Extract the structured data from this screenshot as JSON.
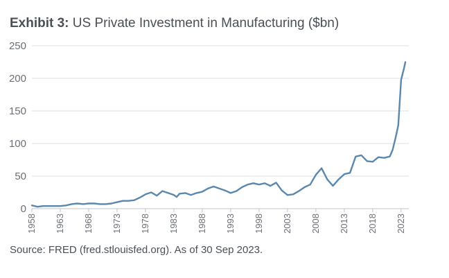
{
  "title": {
    "prefix": "Exhibit 3:",
    "main": "US Private Investment in Manufacturing ($bn)"
  },
  "source": "Source: FRED (fred.stlouisfed.org). As of 30 Sep 2023.",
  "colors": {
    "line": "#5b87ad",
    "grid": "#dcdfe3",
    "text": "#4a4f57"
  },
  "chart_data": {
    "type": "line",
    "title": "US Private Investment in Manufacturing ($bn)",
    "xlabel": "",
    "ylabel": "",
    "ylim": [
      0,
      250
    ],
    "xlim": [
      1958,
      2023.75
    ],
    "y_ticks": [
      "0",
      "50",
      "100",
      "150",
      "200",
      "250"
    ],
    "x_ticks": [
      "1958",
      "1963",
      "1968",
      "1973",
      "1978",
      "1983",
      "1988",
      "1993",
      "1998",
      "2003",
      "2008",
      "2013",
      "2018",
      "2023"
    ],
    "grid": "horizontal",
    "series": [
      {
        "name": "US Private Investment in Manufacturing",
        "x": [
          1958,
          1959,
          1960,
          1961,
          1962,
          1963,
          1964,
          1965,
          1966,
          1967,
          1968,
          1969,
          1970,
          1971,
          1972,
          1973,
          1974,
          1975,
          1976,
          1977,
          1978,
          1979,
          1980,
          1981,
          1982,
          1983,
          1983.5,
          1984,
          1985,
          1986,
          1987,
          1988,
          1989,
          1990,
          1991,
          1992,
          1993,
          1994,
          1995,
          1996,
          1997,
          1998,
          1999,
          2000,
          2001,
          2002,
          2003,
          2004,
          2005,
          2006,
          2007,
          2008,
          2009,
          2010,
          2011,
          2012,
          2013,
          2014,
          2015,
          2016,
          2017,
          2018,
          2019,
          2020,
          2021,
          2021.5,
          2022,
          2022.5,
          2023,
          2023.5,
          2023.75
        ],
        "values": [
          5,
          3,
          4,
          4,
          4,
          4,
          5,
          7,
          8,
          7,
          8,
          8,
          7,
          7,
          8,
          10,
          12,
          12,
          13,
          17,
          22,
          25,
          20,
          27,
          24,
          21,
          18,
          23,
          24,
          21,
          24,
          26,
          31,
          34,
          31,
          28,
          24,
          27,
          33,
          37,
          39,
          37,
          39,
          35,
          40,
          28,
          21,
          22,
          27,
          33,
          37,
          52,
          62,
          45,
          35,
          45,
          53,
          55,
          80,
          82,
          73,
          72,
          79,
          78,
          80,
          90,
          108,
          128,
          198,
          215,
          225
        ]
      }
    ]
  }
}
